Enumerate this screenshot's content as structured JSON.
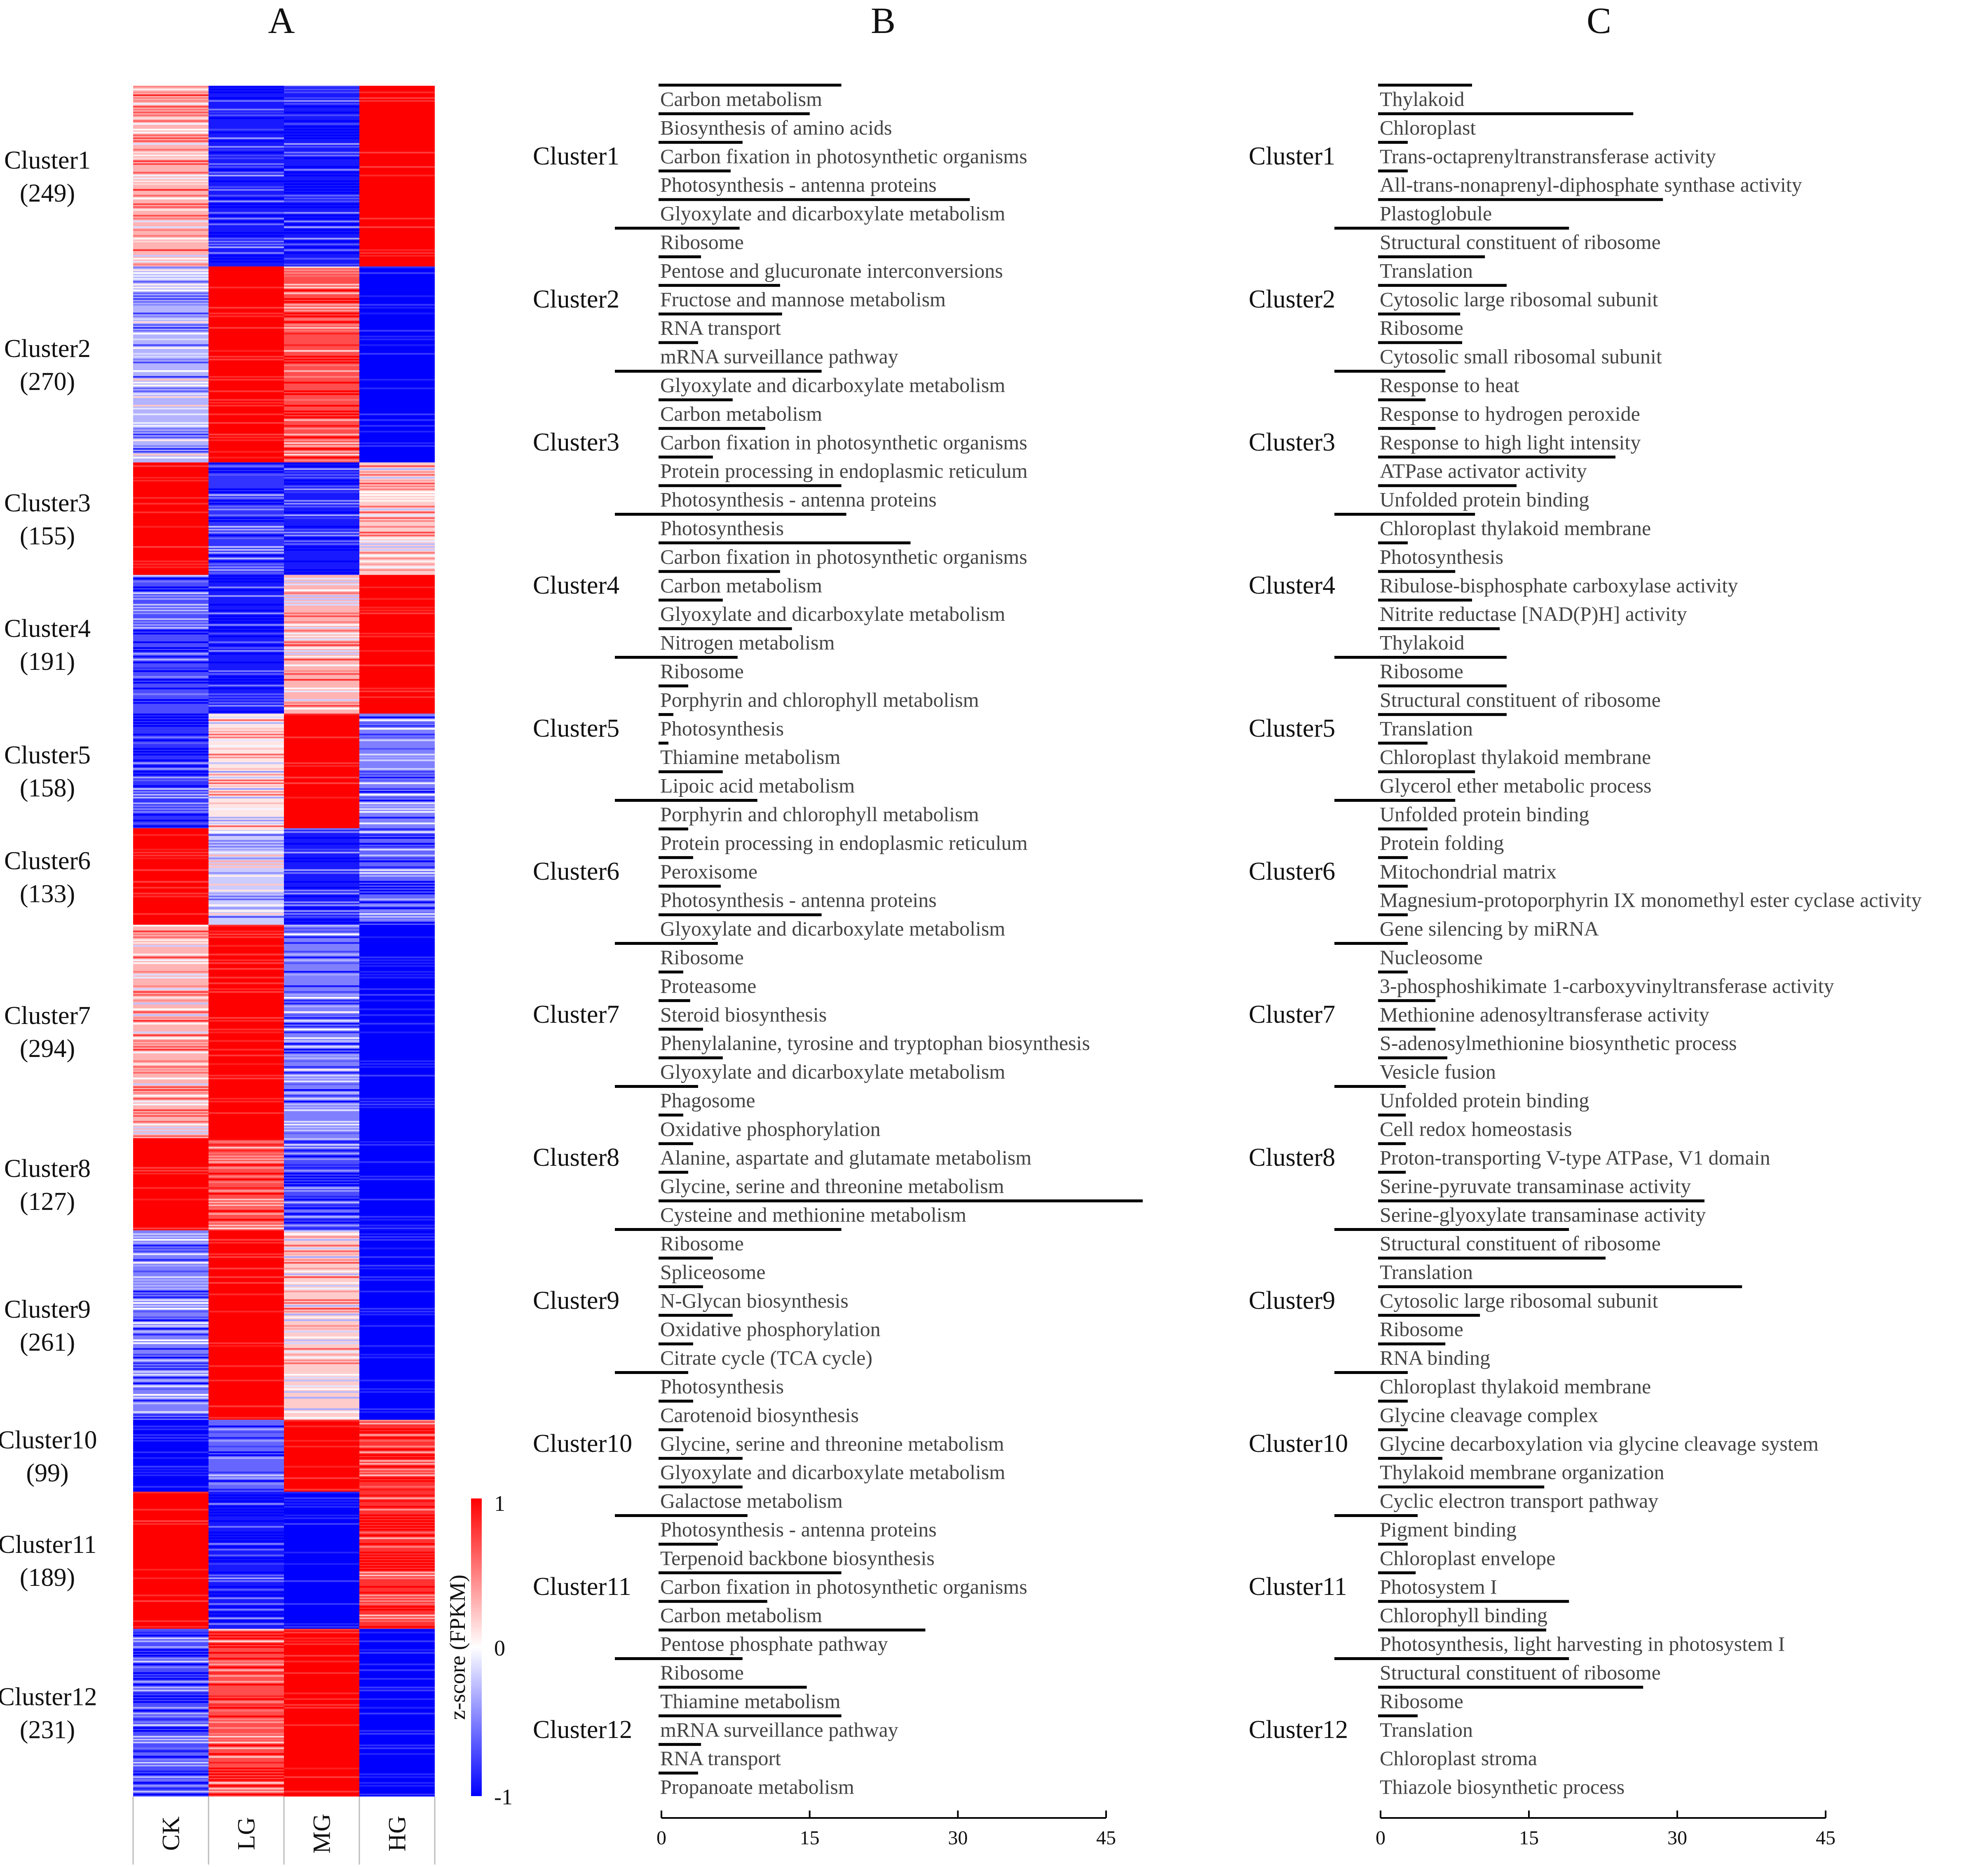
{
  "panels": {
    "a": "A",
    "b": "B",
    "c": "C"
  },
  "chart_data": [
    {
      "type": "heatmap",
      "panel": "A",
      "columns": [
        "CK",
        "LG",
        "MG",
        "HG"
      ],
      "clusters": [
        {
          "name": "Cluster1",
          "count": "(249)",
          "n": 249,
          "pattern": [
            0.3,
            -0.9,
            -0.9,
            1.0
          ]
        },
        {
          "name": "Cluster2",
          "count": "(270)",
          "n": 270,
          "pattern": [
            -0.3,
            1.0,
            0.7,
            -1.0
          ]
        },
        {
          "name": "Cluster3",
          "count": "(155)",
          "n": 155,
          "pattern": [
            1.0,
            -0.8,
            -0.9,
            0.2
          ]
        },
        {
          "name": "Cluster4",
          "count": "(191)",
          "n": 191,
          "pattern": [
            -0.7,
            -0.9,
            0.3,
            1.0
          ]
        },
        {
          "name": "Cluster5",
          "count": "(158)",
          "n": 158,
          "pattern": [
            -0.8,
            0.1,
            1.0,
            -0.5
          ]
        },
        {
          "name": "Cluster6",
          "count": "(133)",
          "n": 133,
          "pattern": [
            1.0,
            -0.2,
            -0.9,
            -0.6
          ]
        },
        {
          "name": "Cluster7",
          "count": "(294)",
          "n": 294,
          "pattern": [
            0.3,
            1.0,
            -0.5,
            -1.0
          ]
        },
        {
          "name": "Cluster8",
          "count": "(127)",
          "n": 127,
          "pattern": [
            1.0,
            0.7,
            -0.7,
            -1.0
          ]
        },
        {
          "name": "Cluster9",
          "count": "(261)",
          "n": 261,
          "pattern": [
            -0.5,
            1.0,
            0.2,
            -1.0
          ]
        },
        {
          "name": "Cluster10",
          "count": "(99)",
          "n": 99,
          "pattern": [
            -1.0,
            -0.6,
            1.0,
            0.8
          ]
        },
        {
          "name": "Cluster11",
          "count": "(189)",
          "n": 189,
          "pattern": [
            1.0,
            -0.9,
            -1.0,
            0.8
          ]
        },
        {
          "name": "Cluster12",
          "count": "(231)",
          "n": 231,
          "pattern": [
            -0.7,
            0.7,
            1.0,
            -1.0
          ]
        }
      ],
      "colorbar": {
        "label": "z-score (FPKM)",
        "ticks": [
          "1",
          "0",
          "-1"
        ],
        "min": -1,
        "max": 1
      },
      "colors": {
        "high": "#ff0000",
        "mid": "#ffffff",
        "low": "#0000ff"
      }
    },
    {
      "type": "bar",
      "panel": "B",
      "orientation": "horizontal",
      "xlim": [
        0,
        45
      ],
      "xticks": [
        "0",
        "15",
        "30",
        "45"
      ],
      "groups": [
        {
          "name": "Cluster1",
          "terms": [
            {
              "label": "Carbon metabolism",
              "value": 18.5
            },
            {
              "label": "Biosynthesis of amino acids",
              "value": 15.3
            },
            {
              "label": "Carbon fixation in photosynthetic organisms",
              "value": 8.5
            },
            {
              "label": "Photosynthesis - antenna proteins",
              "value": 7.3
            },
            {
              "label": "Glyoxylate and dicarboxylate metabolism",
              "value": 31.5
            }
          ]
        },
        {
          "name": "Cluster2",
          "terms": [
            {
              "label": "Ribosome",
              "value": 8.2
            },
            {
              "label": "Pentose and glucuronate interconversions",
              "value": 4.3
            },
            {
              "label": "Fructose and mannose metabolism",
              "value": 12.3
            },
            {
              "label": "RNA transport",
              "value": 12.5
            },
            {
              "label": "mRNA surveillance pathway",
              "value": 4.0
            }
          ]
        },
        {
          "name": "Cluster3",
          "terms": [
            {
              "label": "Glyoxylate and dicarboxylate metabolism",
              "value": 16.5
            },
            {
              "label": "Carbon metabolism",
              "value": 7.5
            },
            {
              "label": "Carbon fixation in photosynthetic organisms",
              "value": 10.8
            },
            {
              "label": "Protein processing in endoplasmic reticulum",
              "value": 5.5
            },
            {
              "label": "Photosynthesis - antenna proteins",
              "value": 18.5
            }
          ]
        },
        {
          "name": "Cluster4",
          "terms": [
            {
              "label": "Photosynthesis",
              "value": 19.0
            },
            {
              "label": "Carbon fixation in photosynthetic organisms",
              "value": 25.5
            },
            {
              "label": "Carbon metabolism",
              "value": 12.3
            },
            {
              "label": "Glyoxylate and dicarboxylate metabolism",
              "value": 6.5
            },
            {
              "label": "Nitrogen metabolism",
              "value": 13.5
            }
          ]
        },
        {
          "name": "Cluster5",
          "terms": [
            {
              "label": "Ribosome",
              "value": 8.0
            },
            {
              "label": "Porphyrin and chlorophyll metabolism",
              "value": 3.0
            },
            {
              "label": "Photosynthesis",
              "value": 1.5
            },
            {
              "label": "Thiamine metabolism",
              "value": 1.0
            },
            {
              "label": "Lipoic acid metabolism",
              "value": 6.5
            }
          ]
        },
        {
          "name": "Cluster6",
          "terms": [
            {
              "label": "Porphyrin and chlorophyll metabolism",
              "value": 10.0
            },
            {
              "label": "Protein processing in endoplasmic reticulum",
              "value": 3.0
            },
            {
              "label": "Peroxisome",
              "value": 3.5
            },
            {
              "label": "Photosynthesis - antenna proteins",
              "value": 6.3
            },
            {
              "label": "Glyoxylate and dicarboxylate metabolism",
              "value": 16.5
            }
          ]
        },
        {
          "name": "Cluster7",
          "terms": [
            {
              "label": "Ribosome",
              "value": 6.0
            },
            {
              "label": "Proteasome",
              "value": 2.5
            },
            {
              "label": "Steroid biosynthesis",
              "value": 3.2
            },
            {
              "label": "Phenylalanine, tyrosine and tryptophan biosynthesis",
              "value": 4.5
            },
            {
              "label": "Glyoxylate and dicarboxylate metabolism",
              "value": 6.5
            }
          ]
        },
        {
          "name": "Cluster8",
          "terms": [
            {
              "label": "Phagosome",
              "value": 4.0
            },
            {
              "label": "Oxidative phosphorylation",
              "value": 2.5
            },
            {
              "label": "Alanine, aspartate and glutamate metabolism",
              "value": 3.5
            },
            {
              "label": "Glycine, serine and threonine metabolism",
              "value": 3.0
            },
            {
              "label": "Cysteine and methionine metabolism",
              "value": 49.0
            }
          ]
        },
        {
          "name": "Cluster9",
          "terms": [
            {
              "label": "Ribosome",
              "value": 18.5
            },
            {
              "label": "Spliceosome",
              "value": 5.5
            },
            {
              "label": "N-Glycan biosynthesis",
              "value": 4.5
            },
            {
              "label": "Oxidative phosphorylation",
              "value": 7.5
            },
            {
              "label": "Citrate cycle (TCA cycle)",
              "value": 3.5
            }
          ]
        },
        {
          "name": "Cluster10",
          "terms": [
            {
              "label": "Photosynthesis",
              "value": 3.0
            },
            {
              "label": "Carotenoid biosynthesis",
              "value": 3.5
            },
            {
              "label": "Glycine, serine and threonine metabolism",
              "value": 2.5
            },
            {
              "label": "Glyoxylate and dicarboxylate metabolism",
              "value": 8.5
            },
            {
              "label": "Galactose metabolism",
              "value": 8.5
            }
          ]
        },
        {
          "name": "Cluster11",
          "terms": [
            {
              "label": "Photosynthesis - antenna proteins",
              "value": 9.0
            },
            {
              "label": "Terpenoid backbone biosynthesis",
              "value": 6.0
            },
            {
              "label": "Carbon fixation in photosynthetic organisms",
              "value": 18.5
            },
            {
              "label": "Carbon metabolism",
              "value": 11.0
            },
            {
              "label": "Pentose phosphate pathway",
              "value": 27.0
            }
          ]
        },
        {
          "name": "Cluster12",
          "terms": [
            {
              "label": "Ribosome",
              "value": 8.5
            },
            {
              "label": "Thiamine metabolism",
              "value": 15.0
            },
            {
              "label": "mRNA surveillance pathway",
              "value": 18.5
            },
            {
              "label": "RNA transport",
              "value": 4.3
            },
            {
              "label": "Propanoate metabolism",
              "value": 4.0
            }
          ]
        }
      ]
    },
    {
      "type": "bar",
      "panel": "C",
      "orientation": "horizontal",
      "xlim": [
        0,
        45
      ],
      "xticks": [
        "0",
        "15",
        "30",
        "45"
      ],
      "groups": [
        {
          "name": "Cluster1",
          "terms": [
            {
              "label": "Thylakoid",
              "value": 9.5
            },
            {
              "label": "Chloroplast",
              "value": 25.8
            },
            {
              "label": "Trans-octaprenyltranstransferase activity",
              "value": 3.0
            },
            {
              "label": "All-trans-nonaprenyl-diphosphate synthase activity",
              "value": 3.0
            },
            {
              "label": "Plastoglobule",
              "value": 28.8
            }
          ]
        },
        {
          "name": "Cluster2",
          "terms": [
            {
              "label": "Structural constituent of ribosome",
              "value": 19.3
            },
            {
              "label": "Translation",
              "value": 10.8
            },
            {
              "label": "Cytosolic large ribosomal subunit",
              "value": 13.0
            },
            {
              "label": "Ribosome",
              "value": 8.3
            },
            {
              "label": "Cytosolic small ribosomal subunit",
              "value": 8.5
            }
          ]
        },
        {
          "name": "Cluster3",
          "terms": [
            {
              "label": "Response to heat",
              "value": 6.8
            },
            {
              "label": "Response to hydrogen peroxide",
              "value": 4.8
            },
            {
              "label": "Response to high light intensity",
              "value": 5.8
            },
            {
              "label": "ATPase activator activity",
              "value": 24.0
            },
            {
              "label": "Unfolded protein binding",
              "value": 14.0
            }
          ]
        },
        {
          "name": "Cluster4",
          "terms": [
            {
              "label": "Chloroplast thylakoid membrane",
              "value": 9.8
            },
            {
              "label": "Photosynthesis",
              "value": 3.0
            },
            {
              "label": "Ribulose-bisphosphate carboxylase activity",
              "value": 7.8
            },
            {
              "label": "Nitrite reductase [NAD(P)H] activity",
              "value": 9.5
            },
            {
              "label": "Thylakoid",
              "value": 12.3
            }
          ]
        },
        {
          "name": "Cluster5",
          "terms": [
            {
              "label": "Ribosome",
              "value": 13.0
            },
            {
              "label": "Structural constituent of ribosome",
              "value": 13.0
            },
            {
              "label": "Translation",
              "value": 13.0
            },
            {
              "label": "Chloroplast thylakoid membrane",
              "value": 5.0
            },
            {
              "label": "Glycerol ether metabolic process",
              "value": 9.8
            }
          ]
        },
        {
          "name": "Cluster6",
          "terms": [
            {
              "label": "Unfolded protein binding",
              "value": 7.8
            },
            {
              "label": "Protein folding",
              "value": 5.0
            },
            {
              "label": "Mitochondrial matrix",
              "value": 3.0
            },
            {
              "label": "Magnesium-protoporphyrin IX monomethyl ester cyclase activity",
              "value": 3.0
            },
            {
              "label": "Gene silencing by miRNA",
              "value": 3.0
            }
          ]
        },
        {
          "name": "Cluster7",
          "terms": [
            {
              "label": "Nucleosome",
              "value": 3.0
            },
            {
              "label": "3-phosphoshikimate 1-carboxyvinyltransferase activity",
              "value": 3.0
            },
            {
              "label": "Methionine adenosyltransferase activity",
              "value": 5.8
            },
            {
              "label": "S-adenosylmethionine biosynthetic process",
              "value": 5.8
            },
            {
              "label": "Vesicle fusion",
              "value": 7.0
            }
          ]
        },
        {
          "name": "Cluster8",
          "terms": [
            {
              "label": "Unfolded protein binding",
              "value": 2.8
            },
            {
              "label": "Cell redox homeostasis",
              "value": 2.8
            },
            {
              "label": "Proton-transporting V-type ATPase, V1 domain",
              "value": 2.8
            },
            {
              "label": "Serine-pyruvate transaminase activity",
              "value": 2.8
            },
            {
              "label": "Serine-glyoxylate transaminase activity",
              "value": 33.0
            }
          ]
        },
        {
          "name": "Cluster9",
          "terms": [
            {
              "label": "Structural constituent of ribosome",
              "value": 19.3
            },
            {
              "label": "Translation",
              "value": 23.0
            },
            {
              "label": "Cytosolic large ribosomal subunit",
              "value": 36.8
            },
            {
              "label": "Ribosome",
              "value": 10.3
            },
            {
              "label": "RNA binding",
              "value": 6.8
            }
          ]
        },
        {
          "name": "Cluster10",
          "terms": [
            {
              "label": "Chloroplast thylakoid membrane",
              "value": 3.0
            },
            {
              "label": "Glycine cleavage complex",
              "value": 3.0
            },
            {
              "label": "Glycine decarboxylation via glycine cleavage system",
              "value": 3.0
            },
            {
              "label": "Thylakoid membrane organization",
              "value": 6.5
            },
            {
              "label": "Cyclic electron transport pathway",
              "value": 16.8
            }
          ]
        },
        {
          "name": "Cluster11",
          "terms": [
            {
              "label": "Pigment binding",
              "value": 4.0
            },
            {
              "label": "Chloroplast envelope",
              "value": 3.0
            },
            {
              "label": "Photosystem I",
              "value": 3.8
            },
            {
              "label": "Chlorophyll binding",
              "value": 19.3
            },
            {
              "label": "Photosynthesis, light harvesting in photosystem I",
              "value": 17.0
            }
          ]
        },
        {
          "name": "Cluster12",
          "terms": [
            {
              "label": "Structural constituent of ribosome",
              "value": 19.3
            },
            {
              "label": "Ribosome",
              "value": 26.8
            },
            {
              "label": "Translation",
              "value": 4.0
            },
            {
              "label": "Chloroplast stroma",
              "value": 0
            },
            {
              "label": "Thiazole biosynthetic process",
              "value": 0
            }
          ]
        }
      ]
    }
  ]
}
